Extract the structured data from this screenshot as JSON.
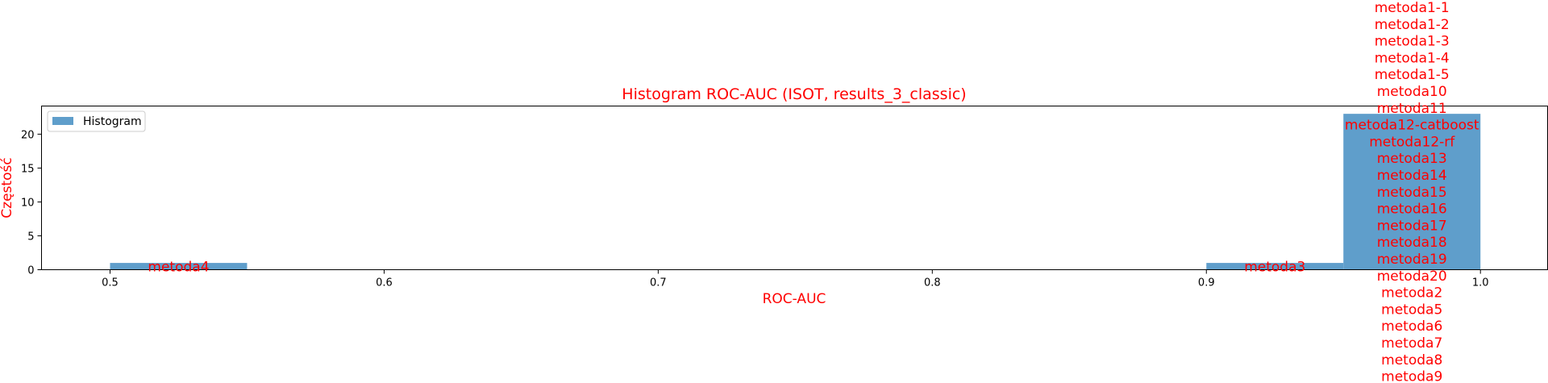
{
  "chart_data": {
    "type": "bar",
    "title": "Histogram ROC-AUC (ISOT, results_3_classic)",
    "xlabel": "ROC-AUC",
    "ylabel": "Częstość",
    "xlim": [
      0.475,
      1.0245
    ],
    "ylim": [
      0,
      24.15
    ],
    "x_ticks": [
      0.5,
      0.6,
      0.7,
      0.8,
      0.9,
      1.0
    ],
    "x_tick_labels": [
      "0.5",
      "0.6",
      "0.7",
      "0.8",
      "0.9",
      "1.0"
    ],
    "y_ticks": [
      0,
      5,
      10,
      15,
      20
    ],
    "y_tick_labels": [
      "0",
      "5",
      "10",
      "15",
      "20"
    ],
    "bin_edges": [
      0.5,
      0.55,
      0.6,
      0.65,
      0.7,
      0.75,
      0.8,
      0.85,
      0.9,
      0.95,
      1.0
    ],
    "counts": [
      1,
      0,
      0,
      0,
      0,
      0,
      0,
      0,
      1,
      23
    ],
    "bar_labels": [
      [
        "metoda4"
      ],
      [],
      [],
      [],
      [],
      [],
      [],
      [],
      [
        "metoda3"
      ],
      [
        "metoda1-1",
        "metoda1-2",
        "metoda1-3",
        "metoda1-4",
        "metoda1-5",
        "metoda10",
        "metoda11",
        "metoda12-catboost",
        "metoda12-rf",
        "metoda13",
        "metoda14",
        "metoda15",
        "metoda16",
        "metoda17",
        "metoda18",
        "metoda19",
        "metoda20",
        "metoda2",
        "metoda5",
        "metoda6",
        "metoda7",
        "metoda8",
        "metoda9"
      ]
    ],
    "legend": {
      "label": "Histogram",
      "position": "upper-left"
    },
    "grid": false,
    "colors": {
      "bar": "#5f9ecb",
      "text": "#ff0000",
      "axis": "#000000"
    }
  }
}
